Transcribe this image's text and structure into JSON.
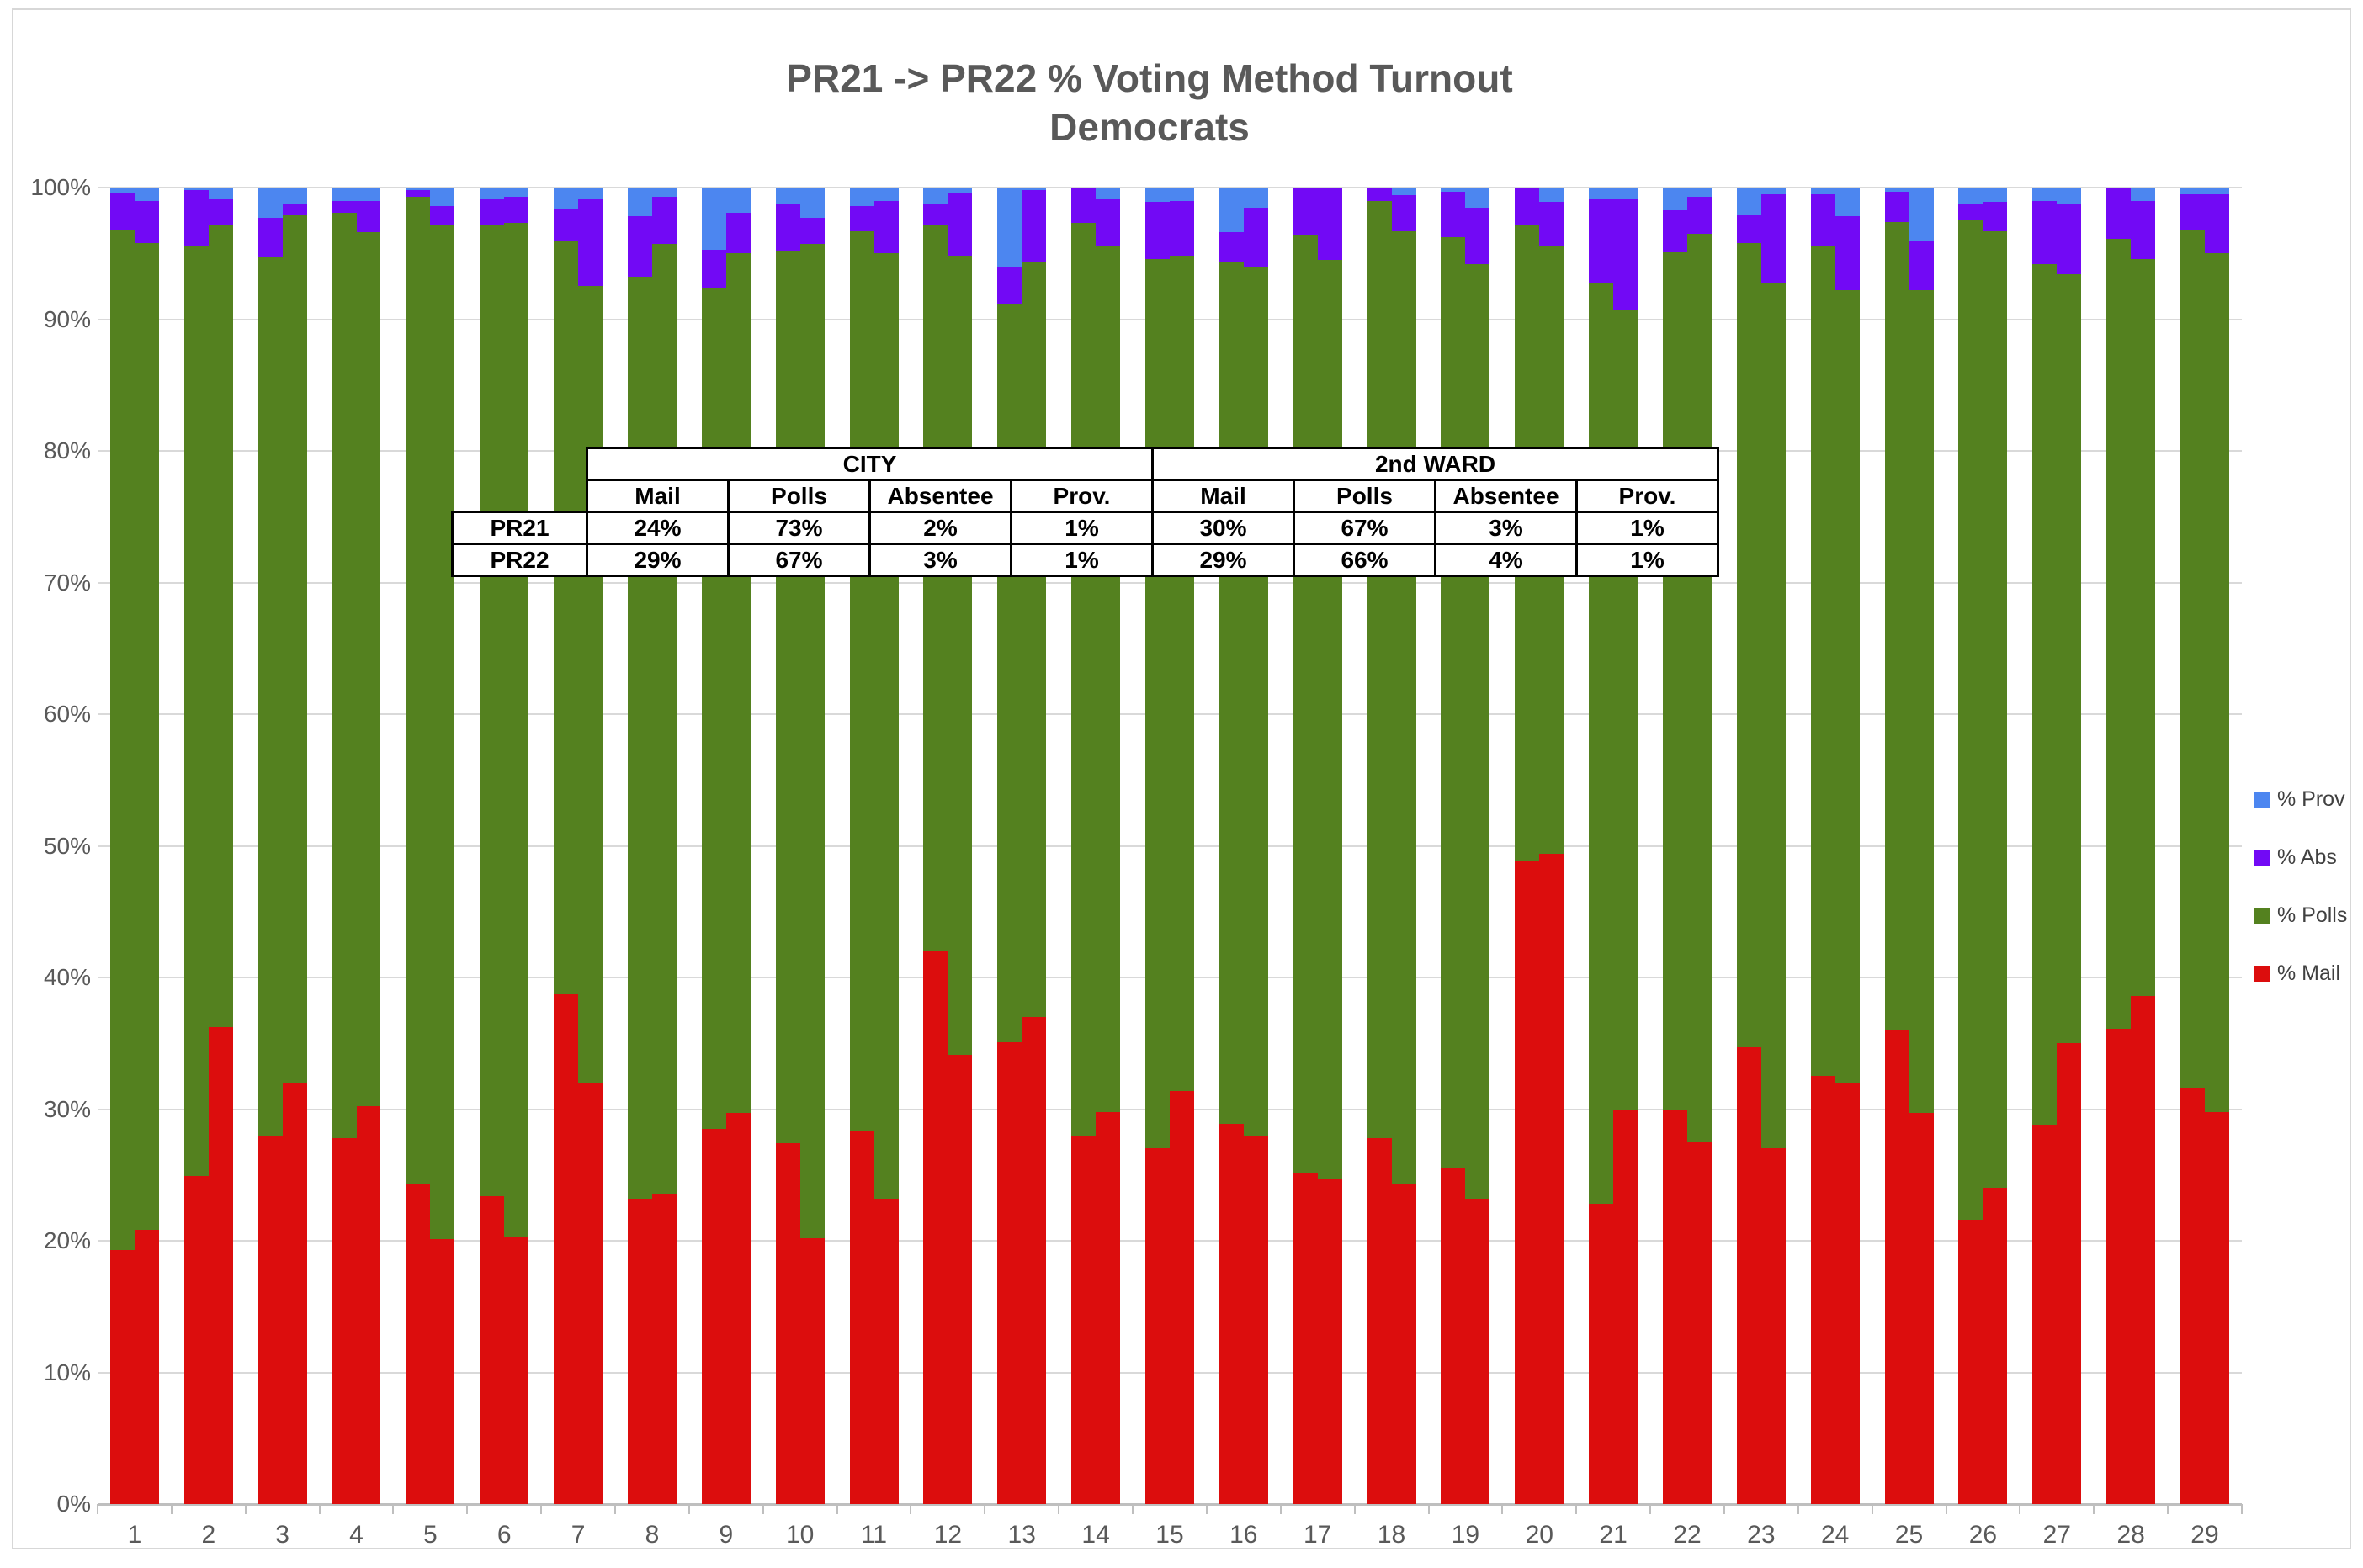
{
  "title": {
    "line1": "PR21 -> PR22 % Voting Method Turnout",
    "line2": "Democrats"
  },
  "colors": {
    "mail": "#dc0d0d",
    "polls": "#54811f",
    "abs": "#7209f5",
    "prov": "#4c86f0",
    "gridline": "#d9d9d9",
    "axis_line": "#bfbfbf",
    "axis_text": "#595959",
    "title_text": "#595959",
    "table_border": "#000000"
  },
  "legend": {
    "items": [
      {
        "label": "% Prov",
        "series": "prov"
      },
      {
        "label": "% Abs",
        "series": "abs"
      },
      {
        "label": "% Polls",
        "series": "polls"
      },
      {
        "label": "% Mail",
        "series": "mail"
      }
    ]
  },
  "summary_table": {
    "group_headers": [
      "CITY",
      "2nd WARD"
    ],
    "col_headers": [
      "Mail",
      "Polls",
      "Absentee",
      "Prov.",
      "Mail",
      "Polls",
      "Absentee",
      "Prov."
    ],
    "rows": [
      {
        "label": "PR21",
        "values": [
          "24%",
          "73%",
          "2%",
          "1%",
          "30%",
          "67%",
          "3%",
          "1%"
        ]
      },
      {
        "label": "PR22",
        "values": [
          "29%",
          "67%",
          "3%",
          "1%",
          "29%",
          "66%",
          "4%",
          "1%"
        ]
      }
    ]
  },
  "chart_data": {
    "type": "bar",
    "stacked": true,
    "orientation": "vertical",
    "ylabel": "",
    "xlabel": "",
    "ylim": [
      0,
      100
    ],
    "y_ticks": [
      "0%",
      "10%",
      "20%",
      "30%",
      "40%",
      "50%",
      "60%",
      "70%",
      "80%",
      "90%",
      "100%"
    ],
    "categories": [
      "1",
      "2",
      "3",
      "4",
      "5",
      "6",
      "7",
      "8",
      "9",
      "10",
      "11",
      "12",
      "13",
      "14",
      "15",
      "16",
      "17",
      "18",
      "19",
      "20",
      "21",
      "22",
      "23",
      "24",
      "25",
      "26",
      "27",
      "28",
      "29"
    ],
    "bars_per_category": [
      "PR21",
      "PR22"
    ],
    "series_order": [
      "mail",
      "polls",
      "abs",
      "prov"
    ],
    "legend_position": "right",
    "grid": true,
    "precincts": [
      {
        "id": "1",
        "PR21": {
          "mail": 19.3,
          "polls": 77.5,
          "abs": 2.8,
          "prov": 0.4
        },
        "PR22": {
          "mail": 20.8,
          "polls": 75.0,
          "abs": 3.2,
          "prov": 1.0
        }
      },
      {
        "id": "2",
        "PR21": {
          "mail": 24.9,
          "polls": 70.6,
          "abs": 4.3,
          "prov": 0.2
        },
        "PR22": {
          "mail": 36.2,
          "polls": 60.9,
          "abs": 2.0,
          "prov": 0.9
        }
      },
      {
        "id": "3",
        "PR21": {
          "mail": 28.0,
          "polls": 66.7,
          "abs": 3.0,
          "prov": 2.3
        },
        "PR22": {
          "mail": 32.0,
          "polls": 65.9,
          "abs": 0.8,
          "prov": 1.3
        }
      },
      {
        "id": "4",
        "PR21": {
          "mail": 27.8,
          "polls": 70.3,
          "abs": 0.9,
          "prov": 1.0
        },
        "PR22": {
          "mail": 30.2,
          "polls": 66.4,
          "abs": 2.4,
          "prov": 1.0
        }
      },
      {
        "id": "5",
        "PR21": {
          "mail": 24.3,
          "polls": 75.0,
          "abs": 0.5,
          "prov": 0.2
        },
        "PR22": {
          "mail": 20.1,
          "polls": 77.1,
          "abs": 1.4,
          "prov": 1.4
        }
      },
      {
        "id": "6",
        "PR21": {
          "mail": 23.4,
          "polls": 73.8,
          "abs": 2.0,
          "prov": 0.8
        },
        "PR22": {
          "mail": 20.3,
          "polls": 77.0,
          "abs": 2.0,
          "prov": 0.7
        }
      },
      {
        "id": "7",
        "PR21": {
          "mail": 38.7,
          "polls": 57.2,
          "abs": 2.5,
          "prov": 1.6
        },
        "PR22": {
          "mail": 32.0,
          "polls": 60.5,
          "abs": 6.7,
          "prov": 0.8
        }
      },
      {
        "id": "8",
        "PR21": {
          "mail": 23.2,
          "polls": 70.0,
          "abs": 4.6,
          "prov": 2.2
        },
        "PR22": {
          "mail": 23.6,
          "polls": 72.1,
          "abs": 3.6,
          "prov": 0.7
        }
      },
      {
        "id": "9",
        "PR21": {
          "mail": 28.5,
          "polls": 63.9,
          "abs": 2.9,
          "prov": 4.7
        },
        "PR22": {
          "mail": 29.7,
          "polls": 65.3,
          "abs": 3.1,
          "prov": 1.9
        }
      },
      {
        "id": "10",
        "PR21": {
          "mail": 27.4,
          "polls": 67.8,
          "abs": 3.5,
          "prov": 1.3
        },
        "PR22": {
          "mail": 20.2,
          "polls": 75.5,
          "abs": 2.0,
          "prov": 2.3
        }
      },
      {
        "id": "11",
        "PR21": {
          "mail": 28.4,
          "polls": 68.3,
          "abs": 1.9,
          "prov": 1.4
        },
        "PR22": {
          "mail": 23.2,
          "polls": 71.8,
          "abs": 4.0,
          "prov": 1.0
        }
      },
      {
        "id": "12",
        "PR21": {
          "mail": 42.0,
          "polls": 55.1,
          "abs": 1.7,
          "prov": 1.2
        },
        "PR22": {
          "mail": 34.1,
          "polls": 60.7,
          "abs": 4.8,
          "prov": 0.4
        }
      },
      {
        "id": "13",
        "PR21": {
          "mail": 35.1,
          "polls": 56.1,
          "abs": 2.8,
          "prov": 6.0
        },
        "PR22": {
          "mail": 37.0,
          "polls": 57.4,
          "abs": 5.4,
          "prov": 0.2
        }
      },
      {
        "id": "14",
        "PR21": {
          "mail": 27.9,
          "polls": 69.4,
          "abs": 2.7,
          "prov": 0.0
        },
        "PR22": {
          "mail": 29.8,
          "polls": 65.8,
          "abs": 3.6,
          "prov": 0.8
        }
      },
      {
        "id": "15",
        "PR21": {
          "mail": 27.0,
          "polls": 67.6,
          "abs": 4.3,
          "prov": 1.1
        },
        "PR22": {
          "mail": 31.4,
          "polls": 63.4,
          "abs": 4.2,
          "prov": 1.0
        }
      },
      {
        "id": "16",
        "PR21": {
          "mail": 28.9,
          "polls": 65.4,
          "abs": 2.3,
          "prov": 3.4
        },
        "PR22": {
          "mail": 28.0,
          "polls": 66.0,
          "abs": 4.5,
          "prov": 1.5
        }
      },
      {
        "id": "17",
        "PR21": {
          "mail": 25.2,
          "polls": 71.2,
          "abs": 3.6,
          "prov": 0.0
        },
        "PR22": {
          "mail": 24.7,
          "polls": 69.8,
          "abs": 5.5,
          "prov": 0.0
        }
      },
      {
        "id": "18",
        "PR21": {
          "mail": 27.8,
          "polls": 71.2,
          "abs": 1.0,
          "prov": 0.0
        },
        "PR22": {
          "mail": 24.3,
          "polls": 72.4,
          "abs": 2.7,
          "prov": 0.6
        }
      },
      {
        "id": "19",
        "PR21": {
          "mail": 25.5,
          "polls": 70.7,
          "abs": 3.5,
          "prov": 0.3
        },
        "PR22": {
          "mail": 23.2,
          "polls": 71.0,
          "abs": 4.3,
          "prov": 1.5
        }
      },
      {
        "id": "20",
        "PR21": {
          "mail": 48.9,
          "polls": 48.2,
          "abs": 2.9,
          "prov": 0.0
        },
        "PR22": {
          "mail": 49.4,
          "polls": 46.2,
          "abs": 3.3,
          "prov": 1.1
        }
      },
      {
        "id": "21",
        "PR21": {
          "mail": 22.8,
          "polls": 70.0,
          "abs": 6.4,
          "prov": 0.8
        },
        "PR22": {
          "mail": 29.9,
          "polls": 60.8,
          "abs": 8.5,
          "prov": 0.8
        }
      },
      {
        "id": "22",
        "PR21": {
          "mail": 30.0,
          "polls": 65.1,
          "abs": 3.2,
          "prov": 1.7
        },
        "PR22": {
          "mail": 27.5,
          "polls": 69.0,
          "abs": 2.8,
          "prov": 0.7
        }
      },
      {
        "id": "23",
        "PR21": {
          "mail": 34.7,
          "polls": 61.1,
          "abs": 2.1,
          "prov": 2.1
        },
        "PR22": {
          "mail": 27.0,
          "polls": 65.8,
          "abs": 6.7,
          "prov": 0.5
        }
      },
      {
        "id": "24",
        "PR21": {
          "mail": 32.5,
          "polls": 63.0,
          "abs": 4.0,
          "prov": 0.5
        },
        "PR22": {
          "mail": 32.0,
          "polls": 60.2,
          "abs": 5.6,
          "prov": 2.2
        }
      },
      {
        "id": "25",
        "PR21": {
          "mail": 36.0,
          "polls": 61.4,
          "abs": 2.3,
          "prov": 0.3
        },
        "PR22": {
          "mail": 29.7,
          "polls": 62.5,
          "abs": 3.8,
          "prov": 4.0
        }
      },
      {
        "id": "26",
        "PR21": {
          "mail": 21.6,
          "polls": 76.0,
          "abs": 1.2,
          "prov": 1.2
        },
        "PR22": {
          "mail": 24.0,
          "polls": 72.7,
          "abs": 2.2,
          "prov": 1.1
        }
      },
      {
        "id": "27",
        "PR21": {
          "mail": 28.8,
          "polls": 65.4,
          "abs": 4.8,
          "prov": 1.0
        },
        "PR22": {
          "mail": 35.0,
          "polls": 58.4,
          "abs": 5.4,
          "prov": 1.2
        }
      },
      {
        "id": "28",
        "PR21": {
          "mail": 36.1,
          "polls": 60.0,
          "abs": 3.9,
          "prov": 0.0
        },
        "PR22": {
          "mail": 38.6,
          "polls": 56.0,
          "abs": 4.4,
          "prov": 1.0
        }
      },
      {
        "id": "29",
        "PR21": {
          "mail": 31.6,
          "polls": 65.2,
          "abs": 2.7,
          "prov": 0.5
        },
        "PR22": {
          "mail": 29.8,
          "polls": 65.2,
          "abs": 4.5,
          "prov": 0.5
        }
      }
    ]
  }
}
